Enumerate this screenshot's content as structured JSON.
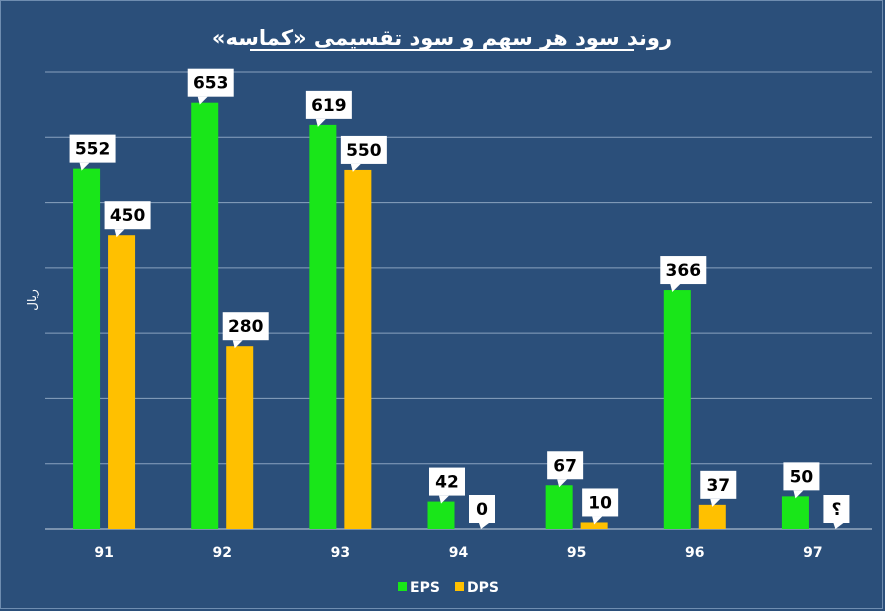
{
  "chart_data": {
    "type": "bar",
    "title": "روند سود هر سهم و سود تقسیمی «کماسه»",
    "ylabel": "ریال",
    "xlabel": "",
    "categories": [
      "91",
      "92",
      "93",
      "94",
      "95",
      "96",
      "97"
    ],
    "series": [
      {
        "name": "EPS",
        "color": "#19e619",
        "values": [
          552,
          653,
          619,
          42,
          67,
          366,
          50
        ],
        "labels": [
          "552",
          "653",
          "619",
          "42",
          "67",
          "366",
          "50"
        ]
      },
      {
        "name": "DPS",
        "color": "#ffc000",
        "values": [
          450,
          280,
          550,
          0,
          10,
          37,
          null
        ],
        "labels": [
          "450",
          "280",
          "550",
          "0",
          "10",
          "37",
          "؟"
        ]
      }
    ],
    "ylim": [
      0,
      700
    ],
    "gridlines": true,
    "legend_position": "bottom"
  }
}
